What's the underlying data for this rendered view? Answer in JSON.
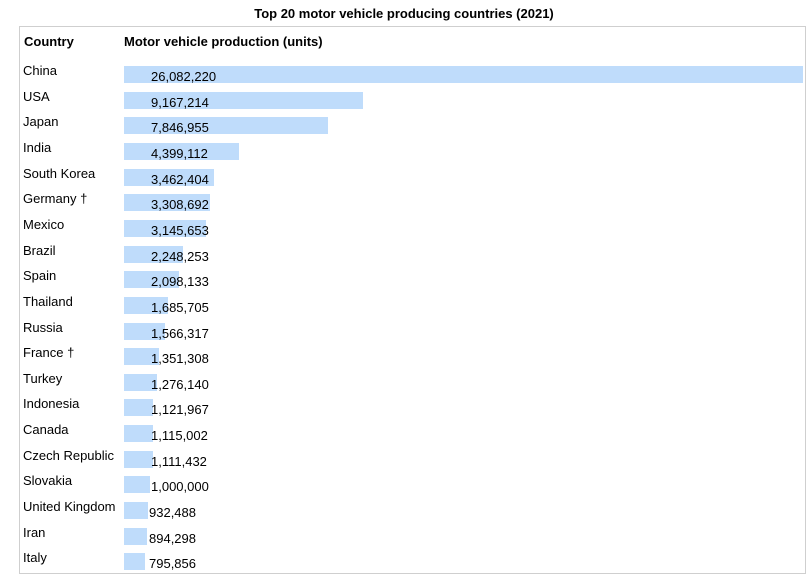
{
  "chart_data": {
    "type": "bar",
    "title": "Top 20 motor vehicle producing countries (2021)",
    "column_headers": [
      "Country",
      "Motor vehicle production (units)"
    ],
    "rows": [
      {
        "country": "China",
        "value": 26082220,
        "label": "26,082,220"
      },
      {
        "country": "USA",
        "value": 9167214,
        "label": "9,167,214"
      },
      {
        "country": "Japan",
        "value": 7846955,
        "label": "7,846,955"
      },
      {
        "country": "India",
        "value": 4399112,
        "label": "4,399,112"
      },
      {
        "country": "South Korea",
        "value": 3462404,
        "label": "3,462,404"
      },
      {
        "country": "Germany †",
        "value": 3308692,
        "label": "3,308,692"
      },
      {
        "country": "Mexico",
        "value": 3145653,
        "label": "3,145,653"
      },
      {
        "country": "Brazil",
        "value": 2248253,
        "label": "2,248,253"
      },
      {
        "country": "Spain",
        "value": 2098133,
        "label": "2,098,133"
      },
      {
        "country": "Thailand",
        "value": 1685705,
        "label": "1,685,705"
      },
      {
        "country": "Russia",
        "value": 1566317,
        "label": "1,566,317"
      },
      {
        "country": "France †",
        "value": 1351308,
        "label": "1,351,308"
      },
      {
        "country": "Turkey",
        "value": 1276140,
        "label": "1,276,140"
      },
      {
        "country": "Indonesia",
        "value": 1121967,
        "label": "1,121,967"
      },
      {
        "country": "Canada",
        "value": 1115002,
        "label": "1,115,002"
      },
      {
        "country": "Czech Republic",
        "value": 1111432,
        "label": "1,111,432"
      },
      {
        "country": "Slovakia",
        "value": 1000000,
        "label": "1,000,000"
      },
      {
        "country": "United Kingdom",
        "value": 932488,
        "label": "932,488"
      },
      {
        "country": "Iran",
        "value": 894298,
        "label": "894,298"
      },
      {
        "country": "Italy",
        "value": 795856,
        "label": "795,856"
      }
    ],
    "bar_color": "#bfdcfb"
  }
}
